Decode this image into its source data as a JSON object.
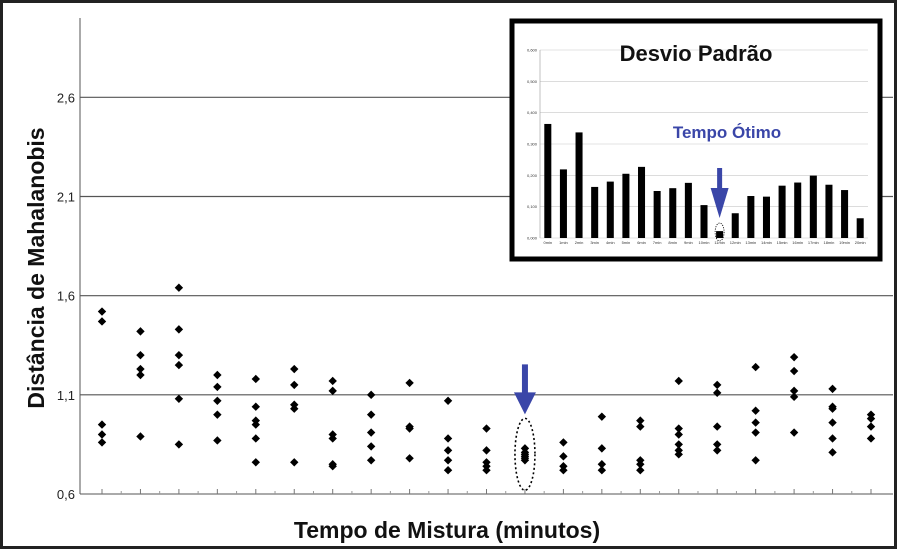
{
  "chart_data": [
    {
      "type": "scatter",
      "xlabel": "Tempo de Mistura (minutos)",
      "ylabel": "Distância de Mahalanobis",
      "yticks": [
        "2,6",
        "2,1",
        "1,6",
        "1,1",
        "0,6"
      ],
      "ytick_values": [
        2.6,
        2.1,
        1.6,
        1.1,
        0.6
      ],
      "ylim": [
        0.6,
        3.0
      ],
      "grid": true,
      "marker_color": "#000000",
      "arrow_color": "#3a46a8",
      "optimum_group_index": 11,
      "groups": [
        [
          1.52,
          1.47,
          0.95,
          0.9,
          0.86
        ],
        [
          1.42,
          1.3,
          1.23,
          1.2,
          0.89
        ],
        [
          1.64,
          1.43,
          1.3,
          1.25,
          1.08,
          0.85
        ],
        [
          1.2,
          1.14,
          1.07,
          1.0,
          0.87
        ],
        [
          1.18,
          1.04,
          0.97,
          0.95,
          0.88,
          0.76
        ],
        [
          1.23,
          1.15,
          1.05,
          1.03,
          0.76
        ],
        [
          1.17,
          1.12,
          0.9,
          0.88,
          0.75,
          0.74
        ],
        [
          1.1,
          1.0,
          0.91,
          0.84,
          0.77
        ],
        [
          1.16,
          0.94,
          0.93,
          0.78
        ],
        [
          1.07,
          0.88,
          0.82,
          0.77,
          0.72
        ],
        [
          0.93,
          0.82,
          0.76,
          0.74,
          0.72
        ],
        [
          0.83,
          0.81,
          0.8,
          0.79,
          0.78,
          0.77
        ],
        [
          0.86,
          0.79,
          0.74,
          0.72
        ],
        [
          0.99,
          0.83,
          0.75,
          0.72
        ],
        [
          0.97,
          0.94,
          0.77,
          0.75,
          0.72
        ],
        [
          1.17,
          0.93,
          0.9,
          0.85,
          0.82,
          0.8
        ],
        [
          1.15,
          1.11,
          0.94,
          0.85,
          0.82
        ],
        [
          1.24,
          1.02,
          0.96,
          0.91,
          0.77
        ],
        [
          1.29,
          1.22,
          1.12,
          1.09,
          0.91
        ],
        [
          1.13,
          1.04,
          1.03,
          0.96,
          0.88,
          0.81
        ],
        [
          1.0,
          0.98,
          0.94,
          0.88
        ]
      ]
    },
    {
      "type": "bar",
      "title": "Desvio Padrão",
      "annotation": "Tempo Ótimo",
      "ytick_labels": [
        "0,600",
        "0,500",
        "0,400",
        "0,300",
        "0,200",
        "0,100",
        "0,000"
      ],
      "ylim": [
        0,
        0.6
      ],
      "categories": [
        "0min",
        "1min",
        "2min",
        "3min",
        "4min",
        "5min",
        "6min",
        "7min",
        "8min",
        "9min",
        "10min",
        "11min",
        "12min",
        "13min",
        "14min",
        "15min",
        "16min",
        "17min",
        "18min",
        "19min",
        "20min"
      ],
      "values": [
        0.364,
        0.219,
        0.337,
        0.163,
        0.18,
        0.205,
        0.227,
        0.15,
        0.159,
        0.176,
        0.105,
        0.022,
        0.079,
        0.134,
        0.132,
        0.167,
        0.177,
        0.199,
        0.17,
        0.153,
        0.063
      ],
      "optimum_index": 11
    }
  ]
}
